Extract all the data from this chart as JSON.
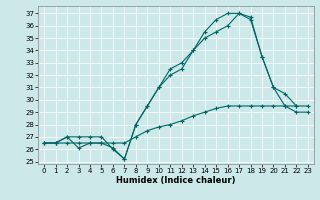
{
  "xlabel": "Humidex (Indice chaleur)",
  "bg_color": "#cce8e8",
  "line_color": "#006666",
  "xlim": [
    -0.5,
    23.5
  ],
  "ylim": [
    24.8,
    37.6
  ],
  "yticks": [
    25,
    26,
    27,
    28,
    29,
    30,
    31,
    32,
    33,
    34,
    35,
    36,
    37
  ],
  "xticks": [
    0,
    1,
    2,
    3,
    4,
    5,
    6,
    7,
    8,
    9,
    10,
    11,
    12,
    13,
    14,
    15,
    16,
    17,
    18,
    19,
    20,
    21,
    22,
    23
  ],
  "line1_x": [
    0,
    1,
    2,
    3,
    4,
    5,
    6,
    7,
    8,
    9,
    10,
    11,
    12,
    13,
    14,
    15,
    16,
    17,
    18,
    19,
    20,
    21,
    22
  ],
  "line1_y": [
    26.5,
    26.5,
    27.0,
    26.1,
    26.5,
    26.5,
    26.1,
    25.2,
    28.0,
    29.5,
    31.0,
    32.0,
    32.5,
    34.0,
    35.5,
    36.5,
    37.0,
    37.0,
    36.7,
    33.5,
    31.0,
    30.5,
    29.5
  ],
  "line2_x": [
    0,
    1,
    2,
    3,
    4,
    5,
    6,
    7,
    8,
    9,
    10,
    11,
    12,
    13,
    14,
    15,
    16,
    17,
    18,
    19,
    20,
    21,
    22,
    23
  ],
  "line2_y": [
    26.5,
    26.5,
    27.0,
    27.0,
    27.0,
    27.0,
    26.0,
    25.2,
    28.0,
    29.5,
    31.0,
    32.5,
    33.0,
    34.0,
    35.0,
    35.5,
    36.0,
    37.0,
    36.5,
    33.5,
    31.0,
    29.5,
    29.0,
    29.0
  ],
  "line3_x": [
    0,
    1,
    2,
    3,
    4,
    5,
    6,
    7,
    8,
    9,
    10,
    11,
    12,
    13,
    14,
    15,
    16,
    17,
    18,
    19,
    20,
    21,
    22,
    23
  ],
  "line3_y": [
    26.5,
    26.5,
    26.5,
    26.5,
    26.5,
    26.5,
    26.5,
    26.5,
    27.0,
    27.5,
    27.8,
    28.0,
    28.3,
    28.7,
    29.0,
    29.3,
    29.5,
    29.5,
    29.5,
    29.5,
    29.5,
    29.5,
    29.5,
    29.5
  ]
}
